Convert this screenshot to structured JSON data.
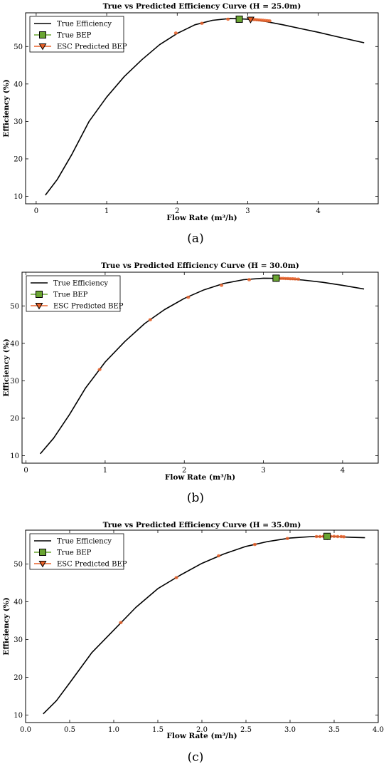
{
  "chart_data": [
    {
      "type": "line",
      "title": "True vs Predicted Efficiency Curve (H = 25.0m)",
      "xlabel": "Flow Rate (m³/h)",
      "ylabel": "Efficiency (%)",
      "xlim": [
        -0.15,
        4.85
      ],
      "ylim": [
        8,
        59
      ],
      "xticks": [
        0,
        1,
        2,
        3,
        4
      ],
      "xtick_labels": [
        "0",
        "1",
        "2",
        "3",
        "4"
      ],
      "yticks": [
        10,
        20,
        30,
        40,
        50
      ],
      "ytick_labels": [
        "10",
        "20",
        "30",
        "40",
        "50"
      ],
      "caption": "(a)",
      "grid": false,
      "legend_position": "top-left",
      "legend": [
        "True Efficiency",
        "True BEP",
        "ESC Predicted BEP"
      ],
      "series": [
        {
          "name": "True Efficiency",
          "kind": "line",
          "color": "#000000",
          "x": [
            0.13,
            0.3,
            0.5,
            0.75,
            1.0,
            1.25,
            1.5,
            1.75,
            2.0,
            2.25,
            2.5,
            2.75,
            3.0,
            3.25,
            3.5,
            3.75,
            4.0,
            4.25,
            4.65
          ],
          "y": [
            10.3,
            14.5,
            21.0,
            30.0,
            36.5,
            42.0,
            46.5,
            50.5,
            53.5,
            55.8,
            57.0,
            57.5,
            57.3,
            56.7,
            55.8,
            54.8,
            53.8,
            52.7,
            51.0
          ]
        },
        {
          "name": "ESC trajectory",
          "kind": "points",
          "color": "#e8622a",
          "x": [
            1.98,
            2.35,
            2.72,
            3.08,
            3.1,
            3.13,
            3.16,
            3.19,
            3.22,
            3.25,
            3.28,
            3.31
          ],
          "y": [
            53.6,
            56.2,
            57.3,
            57.2,
            57.2,
            57.15,
            57.1,
            57.05,
            57.0,
            56.95,
            56.9,
            56.85
          ]
        },
        {
          "name": "True BEP",
          "kind": "marker",
          "color": "#6aa532",
          "x": [
            2.88
          ],
          "y": [
            57.3
          ]
        },
        {
          "name": "ESC Predicted BEP",
          "kind": "marker",
          "color": "#e8622a",
          "x": [
            3.04
          ],
          "y": [
            57.2
          ]
        }
      ]
    },
    {
      "type": "line",
      "title": "True vs Predicted Efficiency Curve (H = 30.0m)",
      "xlabel": "Flow Rate (m³/h)",
      "ylabel": "Efficiency (%)",
      "xlim": [
        -0.05,
        4.45
      ],
      "ylim": [
        8,
        59
      ],
      "xticks": [
        0,
        1,
        2,
        3,
        4
      ],
      "xtick_labels": [
        "0",
        "1",
        "2",
        "3",
        "4"
      ],
      "yticks": [
        10,
        20,
        30,
        40,
        50
      ],
      "ytick_labels": [
        "10",
        "20",
        "30",
        "40",
        "50"
      ],
      "caption": "(b)",
      "grid": false,
      "legend_position": "top-left",
      "legend": [
        "True Efficiency",
        "True BEP",
        "ESC Predicted BEP"
      ],
      "series": [
        {
          "name": "True Efficiency",
          "kind": "line",
          "color": "#000000",
          "x": [
            0.18,
            0.35,
            0.55,
            0.75,
            1.0,
            1.25,
            1.5,
            1.75,
            2.0,
            2.25,
            2.5,
            2.75,
            3.0,
            3.25,
            3.5,
            3.75,
            4.0,
            4.27
          ],
          "y": [
            10.5,
            14.7,
            21.0,
            28.0,
            35.0,
            40.5,
            45.3,
            49.0,
            52.0,
            54.3,
            56.0,
            57.0,
            57.4,
            57.3,
            56.9,
            56.3,
            55.5,
            54.5
          ]
        },
        {
          "name": "ESC trajectory",
          "kind": "points",
          "color": "#e8622a",
          "x": [
            0.93,
            1.57,
            2.05,
            2.47,
            2.82,
            3.22,
            3.25,
            3.28,
            3.31,
            3.34,
            3.37,
            3.4,
            3.44
          ],
          "y": [
            33.0,
            46.3,
            52.3,
            55.5,
            57.0,
            57.35,
            57.35,
            57.3,
            57.3,
            57.25,
            57.25,
            57.2,
            57.15
          ]
        },
        {
          "name": "ESC Predicted BEP",
          "kind": "marker",
          "color": "#e8622a",
          "x": [
            3.16
          ],
          "y": [
            57.4
          ]
        },
        {
          "name": "True BEP",
          "kind": "marker",
          "color": "#6aa532",
          "x": [
            3.16
          ],
          "y": [
            57.4
          ]
        }
      ]
    },
    {
      "type": "line",
      "title": "True vs Predicted Efficiency Curve (H = 35.0m)",
      "xlabel": "Flow Rate (m³/h)",
      "ylabel": "Efficiency (%)",
      "xlim": [
        0.0,
        4.0
      ],
      "ylim": [
        8,
        59
      ],
      "xticks": [
        0.0,
        0.5,
        1.0,
        1.5,
        2.0,
        2.5,
        3.0,
        3.5,
        4.0
      ],
      "xtick_labels": [
        "0.0",
        "0.5",
        "1.0",
        "1.5",
        "2.0",
        "2.5",
        "3.0",
        "3.5",
        "4.0"
      ],
      "yticks": [
        10,
        20,
        30,
        40,
        50
      ],
      "ytick_labels": [
        "10",
        "20",
        "30",
        "40",
        "50"
      ],
      "caption": "(c)",
      "grid": false,
      "legend_position": "top-left",
      "legend": [
        "True Efficiency",
        "True BEP",
        "ESC Predicted BEP"
      ],
      "series": [
        {
          "name": "True Efficiency",
          "kind": "line",
          "color": "#000000",
          "x": [
            0.2,
            0.35,
            0.5,
            0.75,
            1.0,
            1.25,
            1.5,
            1.75,
            2.0,
            2.25,
            2.5,
            2.75,
            3.0,
            3.25,
            3.5,
            3.7,
            3.85
          ],
          "y": [
            10.3,
            13.8,
            18.5,
            26.5,
            32.5,
            38.5,
            43.5,
            47.0,
            50.2,
            52.7,
            54.7,
            56.0,
            56.9,
            57.3,
            57.3,
            57.1,
            57.0
          ]
        },
        {
          "name": "ESC trajectory",
          "kind": "points",
          "color": "#e8622a",
          "x": [
            1.08,
            1.71,
            2.19,
            2.6,
            2.97,
            3.3,
            3.34,
            3.38,
            3.46,
            3.5,
            3.54,
            3.58,
            3.61
          ],
          "y": [
            34.5,
            46.4,
            52.2,
            55.2,
            56.8,
            57.3,
            57.3,
            57.35,
            57.35,
            57.35,
            57.3,
            57.3,
            57.25
          ]
        },
        {
          "name": "ESC Predicted BEP",
          "kind": "marker",
          "color": "#e8622a",
          "x": [
            3.42
          ],
          "y": [
            57.35
          ]
        },
        {
          "name": "True BEP",
          "kind": "marker",
          "color": "#6aa532",
          "x": [
            3.42
          ],
          "y": [
            57.35
          ]
        }
      ]
    }
  ]
}
